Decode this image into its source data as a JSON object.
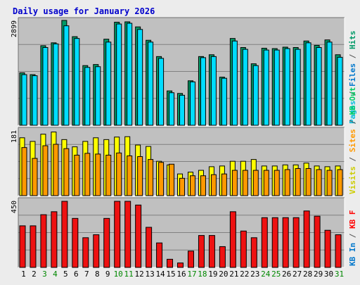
{
  "chart_data": {
    "type": "bar",
    "title": "Daily usage for January 2026",
    "days": [
      "1",
      "2",
      "3",
      "4",
      "5",
      "6",
      "7",
      "8",
      "9",
      "10",
      "11",
      "12",
      "13",
      "14",
      "15",
      "16",
      "17",
      "18",
      "19",
      "20",
      "21",
      "22",
      "23",
      "24",
      "25",
      "26",
      "27",
      "28",
      "29",
      "30",
      "31"
    ],
    "weekend_days": [
      "3",
      "4",
      "10",
      "11",
      "17",
      "18",
      "24",
      "25",
      "31"
    ],
    "panels": [
      {
        "id": "hits-files-pages",
        "max_label": "2899",
        "ymax": 2899,
        "series": [
          {
            "name": "Hits",
            "color": "#009966",
            "values": [
              1450,
              1400,
              2200,
              2280,
              2899,
              2450,
              1650,
              1680,
              2380,
              2850,
              2860,
              2720,
              2350,
              1900,
              950,
              880,
              1230,
              1900,
              1950,
              1330,
              2400,
              2150,
              1700,
              2130,
              2120,
              2160,
              2150,
              2330,
              2210,
              2360,
              1950
            ]
          },
          {
            "name": "Files",
            "color": "#00ddff",
            "values": [
              1400,
              1370,
              2150,
              2250,
              2750,
              2400,
              1600,
              1620,
              2300,
              2800,
              2820,
              2650,
              2300,
              1850,
              900,
              830,
              1200,
              1870,
              1900,
              1300,
              2330,
              2100,
              1650,
              2080,
              2080,
              2120,
              2100,
              2280,
              2150,
              2300,
              1880
            ]
          },
          {
            "name": "Pages",
            "color": "#00ddff",
            "values": []
          }
        ]
      },
      {
        "id": "visits-sites",
        "max_label": "181",
        "ymax": 181,
        "series": [
          {
            "name": "Visits",
            "color": "#ffff00",
            "values": [
              160,
              150,
              170,
              176,
              155,
              135,
              150,
              160,
              155,
              162,
              163,
              140,
              136,
              95,
              85,
              60,
              65,
              70,
              80,
              82,
              95,
              95,
              100,
              82,
              82,
              85,
              85,
              90,
              82,
              80,
              82
            ]
          },
          {
            "name": "Sites",
            "color": "#ff9900",
            "values": [
              133,
              103,
              138,
              142,
              130,
              112,
              117,
              115,
              112,
              118,
              110,
              108,
              100,
              92,
              87,
              48,
              55,
              55,
              58,
              60,
              70,
              70,
              70,
              70,
              70,
              72,
              75,
              75,
              72,
              70,
              72
            ]
          },
          {
            "name": "KB Out",
            "color": "#00cc66",
            "values": []
          }
        ]
      },
      {
        "id": "kb-in",
        "max_label": "450",
        "ymax": 450,
        "series": [
          {
            "name": "KB In",
            "color": "#ee1111",
            "values": [
              280,
              280,
              355,
              375,
              445,
              330,
              200,
              220,
              330,
              445,
              445,
              420,
              270,
              165,
              55,
              30,
              110,
              215,
              215,
              140,
              375,
              245,
              200,
              335,
              335,
              335,
              335,
              380,
              345,
              250,
              220
            ]
          },
          {
            "name": "KB F",
            "color": "#ff0000",
            "values": []
          }
        ]
      }
    ],
    "right_legend": [
      [
        {
          "text": "Pages",
          "color": "#00bbdd"
        },
        {
          "text": " / ",
          "color": "#555555"
        },
        {
          "text": "Files",
          "color": "#0077cc"
        },
        {
          "text": " / ",
          "color": "#555555"
        },
        {
          "text": "Hits",
          "color": "#009966"
        }
      ],
      [
        {
          "text": "Visits",
          "color": "#cccc00"
        },
        {
          "text": " / ",
          "color": "#555555"
        },
        {
          "text": "Sites",
          "color": "#ff9900"
        },
        {
          "text": " / ",
          "color": "#555555"
        },
        {
          "text": "KB Out",
          "color": "#00cc66"
        }
      ],
      [
        {
          "text": "KB In",
          "color": "#0077cc"
        },
        {
          "text": " / ",
          "color": "#555555"
        },
        {
          "text": "KB F",
          "color": "#ff0000"
        }
      ]
    ],
    "grid": true
  }
}
